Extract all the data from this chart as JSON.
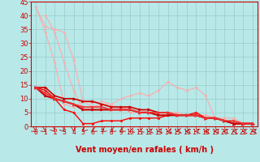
{
  "xlabel": "Vent moyen/en rafales ( km/h )",
  "xlim": [
    -0.5,
    23.5
  ],
  "ylim": [
    0,
    45
  ],
  "yticks": [
    0,
    5,
    10,
    15,
    20,
    25,
    30,
    35,
    40,
    45
  ],
  "xticks": [
    0,
    1,
    2,
    3,
    4,
    5,
    6,
    7,
    8,
    9,
    10,
    11,
    12,
    13,
    14,
    15,
    16,
    17,
    18,
    19,
    20,
    21,
    22,
    23
  ],
  "background_color": "#b8e8e8",
  "grid_color": "#99cccc",
  "lines": [
    {
      "x": [
        0,
        1,
        2,
        3,
        4,
        5,
        6,
        7,
        8,
        9,
        10,
        11,
        12,
        13,
        14,
        15,
        16,
        17,
        18,
        19,
        20,
        21,
        22,
        23
      ],
      "y": [
        43,
        36,
        35,
        34,
        24,
        9,
        8.5,
        9,
        8,
        6,
        7,
        6,
        5,
        5,
        4,
        4,
        4,
        4,
        4,
        3,
        2,
        1,
        1,
        1
      ],
      "color": "#ffaaaa",
      "linewidth": 0.8,
      "marker": "D",
      "markersize": 1.5
    },
    {
      "x": [
        1,
        2,
        3,
        4,
        5,
        6,
        7,
        8,
        9,
        10,
        11,
        12,
        13,
        14,
        15,
        16,
        17,
        18,
        19,
        20,
        21,
        22,
        23
      ],
      "y": [
        40,
        34,
        23,
        13,
        6,
        7,
        8,
        8,
        10,
        11,
        12,
        11,
        13,
        16,
        14,
        13,
        14,
        11,
        3,
        3,
        3,
        1,
        1
      ],
      "color": "#ffaaaa",
      "linewidth": 0.8,
      "marker": "D",
      "markersize": 1.5
    },
    {
      "x": [
        0,
        1,
        2,
        3,
        4,
        5,
        6,
        7,
        8,
        9,
        10,
        11,
        12,
        13,
        14,
        15,
        16,
        17,
        18,
        19,
        20,
        21,
        22,
        23
      ],
      "y": [
        43,
        34,
        23,
        8,
        7,
        9,
        7,
        8,
        7,
        7,
        5,
        5,
        5,
        5,
        5,
        5,
        4,
        4,
        4,
        3,
        2,
        1,
        1,
        1
      ],
      "color": "#ffaaaa",
      "linewidth": 0.8,
      "marker": "D",
      "markersize": 1.5
    },
    {
      "x": [
        0,
        1,
        2,
        3,
        4,
        5,
        6,
        7,
        8,
        9,
        10,
        11,
        12,
        13,
        14,
        15,
        16,
        17,
        18,
        19,
        20,
        21,
        22,
        23
      ],
      "y": [
        14,
        14,
        11,
        10,
        10,
        9,
        9,
        8,
        7,
        7,
        7,
        6,
        6,
        5,
        5,
        4,
        4,
        4,
        3,
        3,
        2,
        1,
        1,
        1
      ],
      "color": "#cc0000",
      "linewidth": 1.2,
      "marker": ">",
      "markersize": 2.5
    },
    {
      "x": [
        0,
        1,
        2,
        3,
        4,
        5,
        6,
        7,
        8,
        9,
        10,
        11,
        12,
        13,
        14,
        15,
        16,
        17,
        18,
        19,
        20,
        21,
        22,
        23
      ],
      "y": [
        14,
        13,
        10,
        6,
        5,
        1,
        1,
        2,
        2,
        2,
        3,
        3,
        3,
        3,
        4,
        4,
        4,
        5,
        3,
        3,
        2,
        1,
        1,
        1
      ],
      "color": "#ff0000",
      "linewidth": 1.0,
      "marker": "*",
      "markersize": 2.5
    },
    {
      "x": [
        0,
        1,
        2,
        3,
        4,
        5,
        6,
        7,
        8,
        9,
        10,
        11,
        12,
        13,
        14,
        15,
        16,
        17,
        18,
        19,
        20,
        21,
        22,
        23
      ],
      "y": [
        14,
        11,
        10,
        9,
        8,
        6,
        6,
        6,
        6,
        6,
        6,
        5,
        5,
        4,
        4,
        4,
        4,
        4,
        3,
        3,
        2,
        1,
        1,
        1
      ],
      "color": "#cc0000",
      "linewidth": 1.5,
      "marker": ">",
      "markersize": 2.5
    },
    {
      "x": [
        0,
        1,
        2,
        3,
        4,
        5,
        6,
        7,
        8,
        9,
        10,
        11,
        12,
        13,
        14,
        15,
        16,
        17,
        18,
        19,
        20,
        21,
        22,
        23
      ],
      "y": [
        14,
        12,
        10,
        9,
        8,
        7,
        7,
        7,
        6,
        6,
        6,
        5,
        5,
        5,
        5,
        4,
        4,
        4,
        3,
        3,
        2,
        2,
        1,
        1
      ],
      "color": "#ee3333",
      "linewidth": 1.2,
      "marker": ">",
      "markersize": 2.5
    }
  ],
  "xlabel_color": "#cc0000",
  "xlabel_fontsize": 7,
  "tick_color": "#cc0000",
  "ytick_fontsize": 6,
  "xtick_fontsize": 5.5,
  "spine_color": "#cc0000",
  "arrow_color": "#cc0000"
}
